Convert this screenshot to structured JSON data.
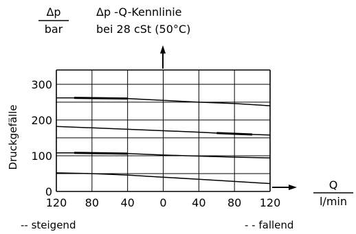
{
  "chart_data": {
    "type": "line",
    "title_line1": "Δp -Q-Kennlinie",
    "title_line2": "bei 28 cSt (50°C)",
    "ylabel": "Druckgefälle",
    "y_unit_num": "Δp",
    "y_unit_den": "bar",
    "x_unit_num": "Q",
    "x_unit_den": "l/min",
    "x_ticks": [
      "120",
      "80",
      "40",
      "0",
      "40",
      "80",
      "120"
    ],
    "y_ticks": [
      "0",
      "100",
      "200",
      "300"
    ],
    "ylim": [
      0,
      340
    ],
    "x_range": [
      -120,
      120
    ],
    "legend": {
      "left": "-- steigend",
      "right": "- - fallend"
    },
    "series": [
      {
        "style": "steigend",
        "x": [
          -120,
          -100,
          -40,
          0,
          40,
          80,
          120
        ],
        "y": [
          262,
          262,
          260,
          255,
          250,
          246,
          240
        ]
      },
      {
        "style": "fallend",
        "x": [
          -120,
          -80,
          -40,
          0,
          40,
          80,
          120
        ],
        "y": [
          182,
          178,
          174,
          170,
          166,
          161,
          158
        ]
      },
      {
        "style": "steigend",
        "x": [
          -120,
          -80,
          -40,
          0,
          40,
          80,
          120
        ],
        "y": [
          108,
          108,
          106,
          102,
          99,
          96,
          94
        ]
      },
      {
        "style": "fallend",
        "x": [
          -120,
          -80,
          -40,
          0,
          40,
          80,
          120
        ],
        "y": [
          52,
          50,
          46,
          40,
          34,
          28,
          22
        ]
      }
    ]
  }
}
